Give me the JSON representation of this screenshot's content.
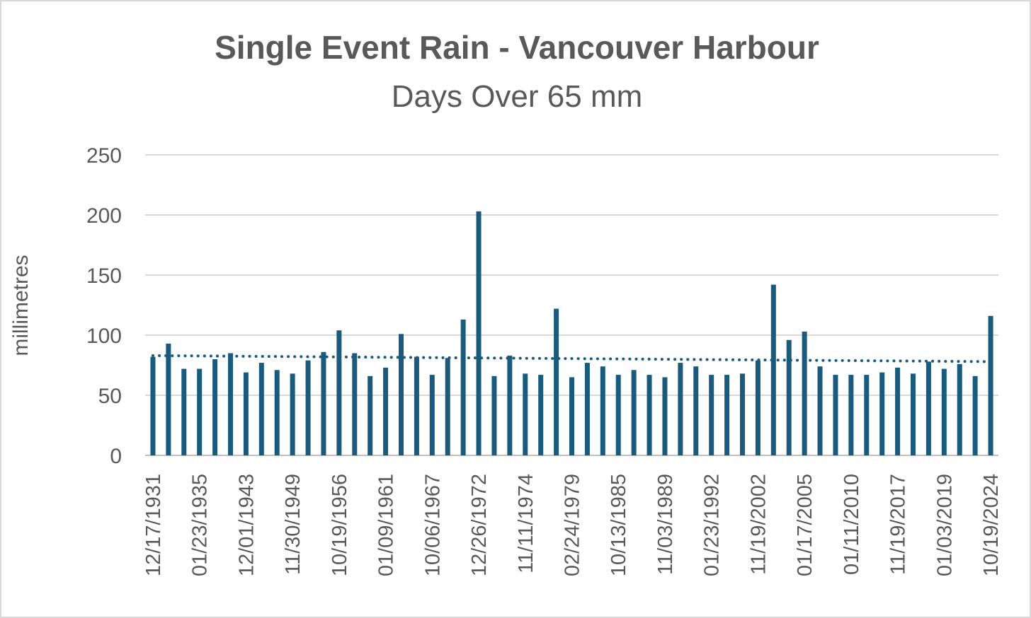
{
  "chart_data": {
    "type": "bar",
    "title": "Single Event Rain - Vancouver Harbour",
    "subtitle": "Days Over 65 mm",
    "ylabel": "millimetres",
    "xlabel": "",
    "ylim": [
      0,
      250
    ],
    "yticks": [
      0,
      50,
      100,
      150,
      200,
      250
    ],
    "grid": true,
    "legend": "none",
    "bar_color": "#1a5b7d",
    "trendline": {
      "style": "dotted",
      "color": "#1a5b7d",
      "start": 83,
      "end": 78
    },
    "values": [
      82,
      93,
      72,
      72,
      80,
      85,
      69,
      77,
      71,
      68,
      79,
      86,
      104,
      85,
      66,
      73,
      101,
      82,
      67,
      81,
      113,
      203,
      66,
      83,
      68,
      67,
      122,
      65,
      77,
      74,
      67,
      71,
      67,
      65,
      77,
      74,
      67,
      67,
      68,
      79,
      142,
      96,
      103,
      74,
      67,
      67,
      67,
      69,
      73,
      68,
      78,
      72,
      76,
      66,
      116
    ],
    "x_tick_labels": [
      {
        "index": 0,
        "label": "12/17/1931"
      },
      {
        "index": 3,
        "label": "01/23/1935"
      },
      {
        "index": 6,
        "label": "12/01/1943"
      },
      {
        "index": 9,
        "label": "11/30/1949"
      },
      {
        "index": 12,
        "label": "10/19/1956"
      },
      {
        "index": 15,
        "label": "01/09/1961"
      },
      {
        "index": 18,
        "label": "10/06/1967"
      },
      {
        "index": 21,
        "label": "12/26/1972"
      },
      {
        "index": 24,
        "label": "11/11/1974"
      },
      {
        "index": 27,
        "label": "02/24/1979"
      },
      {
        "index": 30,
        "label": "10/13/1985"
      },
      {
        "index": 33,
        "label": "11/03/1989"
      },
      {
        "index": 36,
        "label": "01/23/1992"
      },
      {
        "index": 39,
        "label": "11/19/2002"
      },
      {
        "index": 42,
        "label": "01/17/2005"
      },
      {
        "index": 45,
        "label": "01/11/2010"
      },
      {
        "index": 48,
        "label": "11/19/2017"
      },
      {
        "index": 51,
        "label": "01/03/2019"
      },
      {
        "index": 54,
        "label": "10/19/2024"
      }
    ]
  }
}
